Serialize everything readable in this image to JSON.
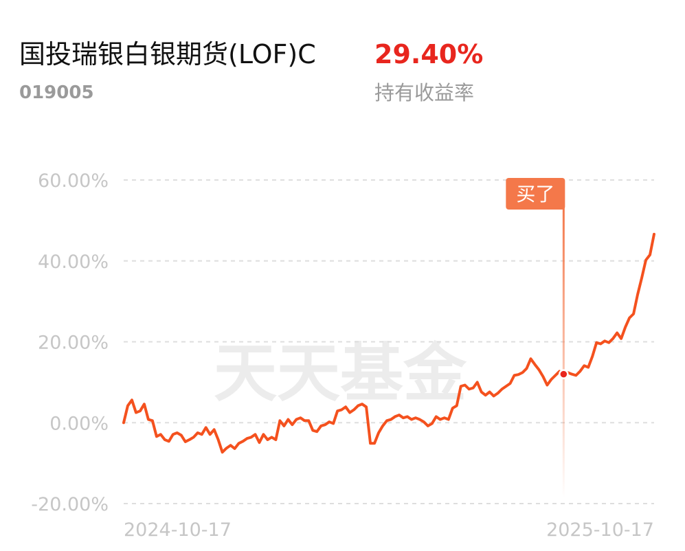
{
  "header": {
    "fund_name": "国投瑞银白银期货(LOF)C",
    "fund_code": "019005",
    "return_value": "29.40%",
    "return_label": "持有收益率"
  },
  "watermark": "天天基金",
  "chart_data": {
    "type": "line",
    "categories": [
      "2024-10-17",
      null,
      null,
      null,
      null,
      null,
      null,
      null,
      null,
      null,
      null,
      null,
      null,
      null,
      null,
      null,
      null,
      null,
      null,
      null,
      null,
      null,
      null,
      null,
      null,
      null,
      null,
      null,
      null,
      null,
      null,
      null,
      null,
      null,
      null,
      null,
      null,
      null,
      null,
      null,
      null,
      null,
      null,
      null,
      null,
      null,
      null,
      null,
      null,
      null,
      null,
      null,
      null,
      null,
      null,
      null,
      null,
      null,
      null,
      null,
      null,
      null,
      null,
      null,
      null,
      null,
      null,
      null,
      null,
      null,
      null,
      null,
      null,
      null,
      null,
      null,
      null,
      null,
      null,
      null,
      null,
      null,
      null,
      null,
      null,
      null,
      null,
      null,
      null,
      null,
      null,
      null,
      null,
      null,
      null,
      null,
      null,
      null,
      null,
      null,
      null,
      null,
      null,
      null,
      null,
      null,
      null,
      null,
      null,
      null,
      null,
      null,
      null,
      null,
      null,
      null,
      null,
      null,
      null,
      null,
      null,
      null,
      null,
      null,
      null,
      null,
      null,
      null,
      null,
      "2025-10-17"
    ],
    "series": [
      {
        "color": "#f4511e",
        "values": [
          0,
          4.2,
          5.6,
          2.5,
          2.9,
          4.6,
          0.8,
          0.5,
          -3.4,
          -2.9,
          -4.2,
          -4.6,
          -2.9,
          -2.5,
          -3.1,
          -4.7,
          -4.2,
          -3.6,
          -2.5,
          -2.9,
          -1.2,
          -2.9,
          -1.7,
          -4.2,
          -7.3,
          -6.3,
          -5.6,
          -6.4,
          -5.1,
          -4.6,
          -3.9,
          -3.6,
          -2.9,
          -4.9,
          -2.9,
          -4.2,
          -3.6,
          -4.2,
          0.5,
          -0.8,
          0.8,
          -0.5,
          0.8,
          1.2,
          0.5,
          0.5,
          -1.9,
          -2.2,
          -0.8,
          -0.5,
          0.2,
          -0.2,
          2.9,
          3.2,
          3.9,
          2.5,
          3.2,
          4.2,
          4.6,
          3.9,
          -5.1,
          -5.1,
          -2.5,
          -0.8,
          0.5,
          0.8,
          1.5,
          1.9,
          1.2,
          1.5,
          0.8,
          1.2,
          0.8,
          0.2,
          -0.8,
          -0.2,
          1.5,
          0.8,
          1.2,
          0.8,
          3.6,
          4.2,
          9.0,
          9.3,
          8.3,
          8.6,
          10.0,
          7.6,
          6.8,
          7.6,
          6.6,
          7.3,
          8.3,
          9.0,
          9.7,
          11.7,
          11.9,
          12.4,
          13.4,
          15.8,
          14.4,
          13.1,
          11.4,
          9.3,
          10.7,
          11.7,
          12.7,
          12.0,
          12.4,
          12.0,
          11.7,
          12.7,
          14.1,
          13.7,
          16.4,
          19.8,
          19.5,
          20.2,
          19.8,
          20.8,
          22.2,
          20.8,
          23.6,
          25.9,
          26.9,
          31.7,
          35.8,
          40.2,
          41.5,
          46.6
        ]
      }
    ],
    "ylim": [
      -20,
      60
    ],
    "yticks": [
      {
        "value": -20,
        "label": "-20.00%"
      },
      {
        "value": 0,
        "label": "0.00%"
      },
      {
        "value": 20,
        "label": "20.00%"
      },
      {
        "value": 40,
        "label": "40.00%"
      },
      {
        "value": 60,
        "label": "60.00%"
      }
    ],
    "grid": true,
    "annotation": {
      "text": "买了",
      "index": 107
    }
  }
}
